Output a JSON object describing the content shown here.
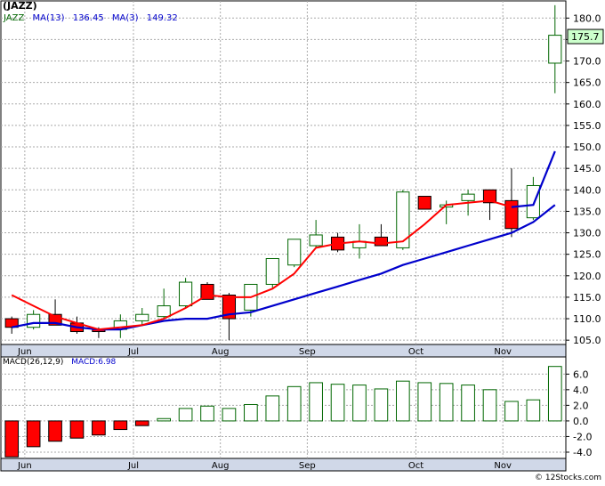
{
  "title": "(JAZZ)",
  "legend": {
    "ticker": "JAZZ",
    "ma13_label": "MA(13)",
    "ma13_value": "136.45",
    "ma3_label": "MA(3)",
    "ma3_value": "149.32"
  },
  "macd_legend": {
    "label": "MACD(26,12,9)",
    "value_label": "MACD:6.98"
  },
  "credit": "© 12Stocks.com",
  "colors": {
    "up": "#ffffff",
    "down": "#ff0000",
    "ma3": "#ff0000",
    "ma13": "#0000cc",
    "ma_short_recent": "#0000cc",
    "last_price_box": "#ccffcc",
    "grid": "#aaaaaa",
    "axis_band": "#d0d8e8"
  },
  "chart_data": [
    {
      "type": "candlestick",
      "title": "(JAZZ)",
      "x_labels": [
        "Jun",
        "Jul",
        "Aug",
        "Sep",
        "Oct",
        "Nov"
      ],
      "x_label_index": [
        1,
        6,
        10,
        14,
        19,
        23
      ],
      "ylim": [
        104,
        184
      ],
      "yticks": [
        105.0,
        110.0,
        115.0,
        120.0,
        125.0,
        130.0,
        135.0,
        140.0,
        145.0,
        150.0,
        155.0,
        160.0,
        165.0,
        170.0,
        175.0,
        180.0
      ],
      "ytick_labels": [
        "105.0",
        "110.0",
        "115.0",
        "120.0",
        "125.0",
        "130.0",
        "135.0",
        "140.0",
        "145.0",
        "150.0",
        "155.0",
        "160.0",
        "165.0",
        "170.0",
        "175.0",
        "180.0"
      ],
      "last_price_label": "175.7",
      "last_price": 175.7,
      "candles": [
        {
          "o": 110.0,
          "h": 110.5,
          "l": 106.5,
          "c": 108.0
        },
        {
          "o": 108.0,
          "h": 112.0,
          "l": 107.5,
          "c": 111.0
        },
        {
          "o": 111.0,
          "h": 114.5,
          "l": 108.5,
          "c": 108.5
        },
        {
          "o": 109.0,
          "h": 110.5,
          "l": 106.5,
          "c": 107.0
        },
        {
          "o": 107.5,
          "h": 108.0,
          "l": 105.5,
          "c": 107.0
        },
        {
          "o": 107.5,
          "h": 111.0,
          "l": 105.5,
          "c": 109.5
        },
        {
          "o": 109.5,
          "h": 112.5,
          "l": 108.5,
          "c": 111.0
        },
        {
          "o": 110.5,
          "h": 117.0,
          "l": 110.0,
          "c": 113.0
        },
        {
          "o": 113.0,
          "h": 119.5,
          "l": 112.5,
          "c": 118.5
        },
        {
          "o": 118.0,
          "h": 118.5,
          "l": 114.5,
          "c": 114.5
        },
        {
          "o": 115.5,
          "h": 116.0,
          "l": 105.0,
          "c": 110.0
        },
        {
          "o": 112.0,
          "h": 118.0,
          "l": 110.5,
          "c": 118.0
        },
        {
          "o": 118.0,
          "h": 124.0,
          "l": 117.0,
          "c": 124.0
        },
        {
          "o": 122.5,
          "h": 128.5,
          "l": 122.0,
          "c": 128.5
        },
        {
          "o": 127.0,
          "h": 133.0,
          "l": 126.5,
          "c": 129.5
        },
        {
          "o": 129.0,
          "h": 130.0,
          "l": 125.5,
          "c": 126.0
        },
        {
          "o": 126.5,
          "h": 132.0,
          "l": 124.0,
          "c": 128.0
        },
        {
          "o": 129.0,
          "h": 132.0,
          "l": 127.0,
          "c": 127.0
        },
        {
          "o": 126.5,
          "h": 140.0,
          "l": 126.0,
          "c": 139.5
        },
        {
          "o": 138.5,
          "h": 138.5,
          "l": 135.5,
          "c": 135.5
        },
        {
          "o": 136.0,
          "h": 137.5,
          "l": 132.0,
          "c": 136.5
        },
        {
          "o": 137.5,
          "h": 140.0,
          "l": 134.0,
          "c": 139.0
        },
        {
          "o": 140.0,
          "h": 140.0,
          "l": 133.0,
          "c": 137.0
        },
        {
          "o": 137.5,
          "h": 145.0,
          "l": 129.0,
          "c": 131.0
        },
        {
          "o": 133.5,
          "h": 143.0,
          "l": 133.0,
          "c": 141.0
        },
        {
          "o": 169.5,
          "h": 183.0,
          "l": 162.5,
          "c": 176.0
        }
      ],
      "ma3": [
        115.5,
        113.0,
        110.5,
        109.0,
        107.5,
        108.0,
        108.5,
        110.0,
        112.5,
        115.5,
        115.0,
        115.0,
        117.0,
        120.5,
        126.5,
        127.5,
        128.0,
        127.5,
        128.0,
        132.0,
        136.5,
        137.0,
        137.5,
        136.0,
        136.5,
        149.0
      ],
      "ma13": [
        108.0,
        109.0,
        109.0,
        108.0,
        107.5,
        107.5,
        108.5,
        109.5,
        110.0,
        110.0,
        111.0,
        111.5,
        113.0,
        114.5,
        116.0,
        117.5,
        119.0,
        120.5,
        122.5,
        124.0,
        125.5,
        127.0,
        128.5,
        130.0,
        132.5,
        136.5
      ]
    },
    {
      "type": "bar",
      "title": "MACD(26,12,9)",
      "value_label": "MACD:6.98",
      "ylim": [
        -4.8,
        8.2
      ],
      "yticks": [
        -4.0,
        -2.0,
        0.0,
        2.0,
        4.0,
        6.0
      ],
      "ytick_labels": [
        "-4.0",
        "-2.0",
        "0.0",
        "2.0",
        "4.0",
        "6.0"
      ],
      "values": [
        -4.6,
        -3.3,
        -2.6,
        -2.2,
        -1.8,
        -1.1,
        -0.6,
        0.3,
        1.6,
        1.9,
        1.6,
        2.1,
        3.2,
        4.4,
        4.9,
        4.7,
        4.6,
        4.1,
        5.1,
        4.9,
        4.8,
        4.6,
        4.0,
        2.5,
        2.7,
        6.98
      ]
    }
  ]
}
